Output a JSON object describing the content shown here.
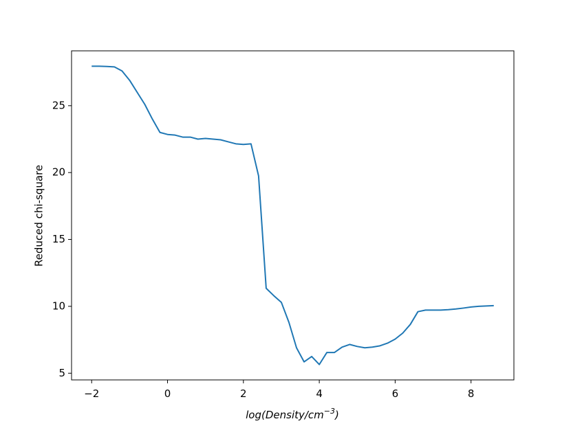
{
  "chart_data": {
    "type": "line",
    "xlabel_parts": [
      "log(Density/cm",
      "−3",
      ")"
    ],
    "ylabel": "Reduced chi-square",
    "x": [
      -2,
      -1.8,
      -1.6,
      -1.4,
      -1.2,
      -1.0,
      -0.8,
      -0.6,
      -0.4,
      -0.2,
      0,
      0.2,
      0.4,
      0.6,
      0.8,
      1.0,
      1.2,
      1.4,
      1.6,
      1.8,
      2.0,
      2.2,
      2.4,
      2.6,
      2.8,
      3.0,
      3.2,
      3.4,
      3.6,
      3.8,
      4.0,
      4.2,
      4.4,
      4.6,
      4.8,
      5.0,
      5.2,
      5.4,
      5.6,
      5.8,
      6.0,
      6.2,
      6.4,
      6.6,
      6.8,
      7.0,
      7.2,
      7.4,
      7.6,
      7.8,
      8.0,
      8.2,
      8.4,
      8.6
    ],
    "series": [
      {
        "color": "#1f77b4",
        "values": [
          27.95,
          27.95,
          27.93,
          27.9,
          27.6,
          26.9,
          26.0,
          25.1,
          24.0,
          23.0,
          22.85,
          22.8,
          22.65,
          22.65,
          22.5,
          22.55,
          22.5,
          22.45,
          22.3,
          22.15,
          22.1,
          22.15,
          19.75,
          11.35,
          10.8,
          10.3,
          8.8,
          6.9,
          5.85,
          6.25,
          5.65,
          6.55,
          6.55,
          6.95,
          7.15,
          7.0,
          6.9,
          6.95,
          7.05,
          7.25,
          7.55,
          8.0,
          8.65,
          9.6,
          9.72,
          9.72,
          9.72,
          9.75,
          9.8,
          9.87,
          9.95,
          10.0,
          10.03,
          10.05
        ]
      }
    ],
    "xlim": [
      -2.53,
      9.13
    ],
    "ylim": [
      4.5,
      29.1
    ],
    "xticks": [
      {
        "value": -2,
        "label": "−2"
      },
      0,
      2,
      4,
      6,
      8
    ],
    "yticks": [
      5,
      10,
      15,
      20,
      25
    ],
    "grid": false
  }
}
